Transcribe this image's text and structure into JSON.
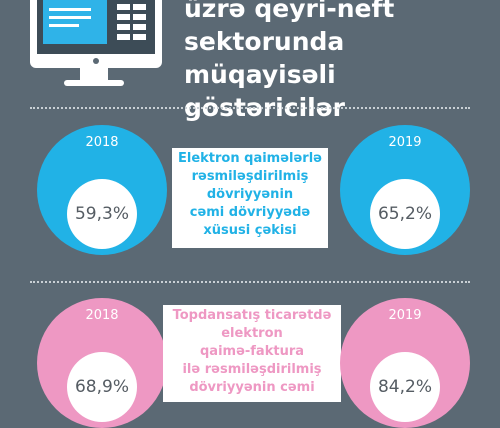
{
  "title": {
    "lines": [
      "üzrə qeyri-neft",
      "sektorunda müqayisəli",
      "göstəricilər"
    ]
  },
  "sections": [
    {
      "color": "#21b2e6",
      "left": {
        "year": "2018",
        "value": "59,3%"
      },
      "right": {
        "year": "2019",
        "value": "65,2%"
      },
      "description_lines": [
        "Elektron qaimələrlə",
        "rəsmiləşdirilmiş",
        "dövriyyənin",
        "cəmi dövriyyədə",
        "xüsusi çəkisi"
      ]
    },
    {
      "color": "#ee98c3",
      "left": {
        "year": "2018",
        "value": "68,9%"
      },
      "right": {
        "year": "2019",
        "value": "84,2%"
      },
      "description_lines": [
        "Topdansatış ticarətdə",
        "elektron",
        "qaimə-faktura",
        "ilə rəsmiləşdirilmiş",
        "dövriyyənin cəmi"
      ]
    }
  ],
  "icons": {
    "monitor": "computer-monitor-icon"
  }
}
